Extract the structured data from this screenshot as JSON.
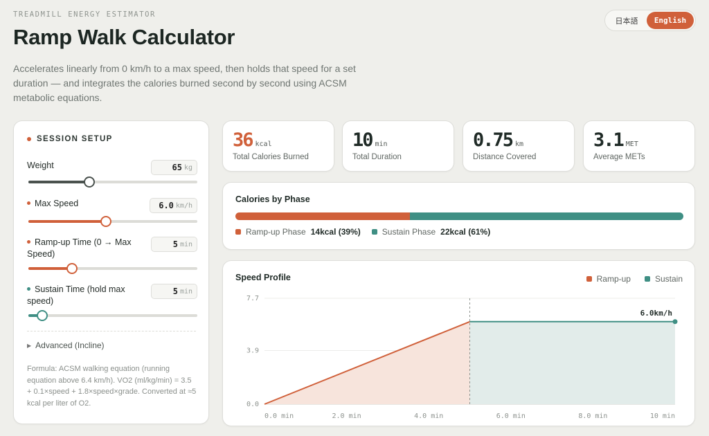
{
  "header": {
    "eyebrow": "TREADMILL ENERGY ESTIMATOR",
    "title": "Ramp Walk Calculator",
    "description": "Accelerates linearly from 0 km/h to a max speed, then holds that speed for a set duration — and integrates the calories burned second by second using ACSM metabolic equations."
  },
  "language": {
    "japanese": "日本語",
    "english": "English",
    "active": "English"
  },
  "setup": {
    "heading": "SESSION SETUP",
    "weight": {
      "label": "Weight",
      "value": "65",
      "unit": "kg",
      "level": 0.36
    },
    "max_speed": {
      "label": "Max Speed",
      "value": "6.0",
      "unit": "km/h",
      "level": 0.46
    },
    "ramp_time": {
      "label": "Ramp-up Time (0 → Max Speed)",
      "value": "5",
      "unit": "min",
      "level": 0.26
    },
    "sustain_time": {
      "label": "Sustain Time (hold max speed)",
      "value": "5",
      "unit": "min",
      "level": 0.08
    },
    "advanced": "Advanced (Incline)",
    "formula": "Formula: ACSM walking equation (running equation above 6.4 km/h). VO2 (ml/kg/min) = 3.5 + 0.1×speed + 1.8×speed×grade. Converted at ≈5 kcal per liter of O2."
  },
  "stats": [
    {
      "value": "36",
      "unit": "kcal",
      "label": "Total Calories Burned",
      "accent": true
    },
    {
      "value": "10",
      "unit": "min",
      "label": "Total Duration",
      "accent": false
    },
    {
      "value": "0.75",
      "unit": "km",
      "label": "Distance Covered",
      "accent": false
    },
    {
      "value": "3.1",
      "unit": "MET",
      "label": "Average METs",
      "accent": false
    }
  ],
  "phase": {
    "title": "Calories by Phase",
    "ramp": {
      "name": "Ramp-up Phase",
      "value": "14kcal (39%)",
      "share": 0.39
    },
    "sustain": {
      "name": "Sustain Phase",
      "value": "22kcal (61%)",
      "share": 0.61
    }
  },
  "colors": {
    "ramp": "#d0603a",
    "sustain": "#3f8f84",
    "ramp_fill": "#f7e4dc",
    "sustain_fill": "#e2ecea",
    "slider_neutral": "#4a524e"
  },
  "chart_data": {
    "type": "line",
    "title": "Speed Profile",
    "legend": [
      "Ramp-up",
      "Sustain"
    ],
    "legend_position": "top-right",
    "x_ticks": [
      "0.0 min",
      "2.0 min",
      "4.0 min",
      "6.0 min",
      "8.0 min",
      "10 min"
    ],
    "y_ticks": [
      "0.0",
      "3.9",
      "7.7"
    ],
    "xlim": [
      0,
      10
    ],
    "ylim": [
      0,
      7.7
    ],
    "series": [
      {
        "name": "Ramp-up",
        "x": [
          0,
          5
        ],
        "y": [
          0,
          6.0
        ]
      },
      {
        "name": "Sustain",
        "x": [
          5,
          10
        ],
        "y": [
          6.0,
          6.0
        ]
      }
    ],
    "phase_boundary_x": 5,
    "end_label": "6.0km/h",
    "grid": true
  }
}
